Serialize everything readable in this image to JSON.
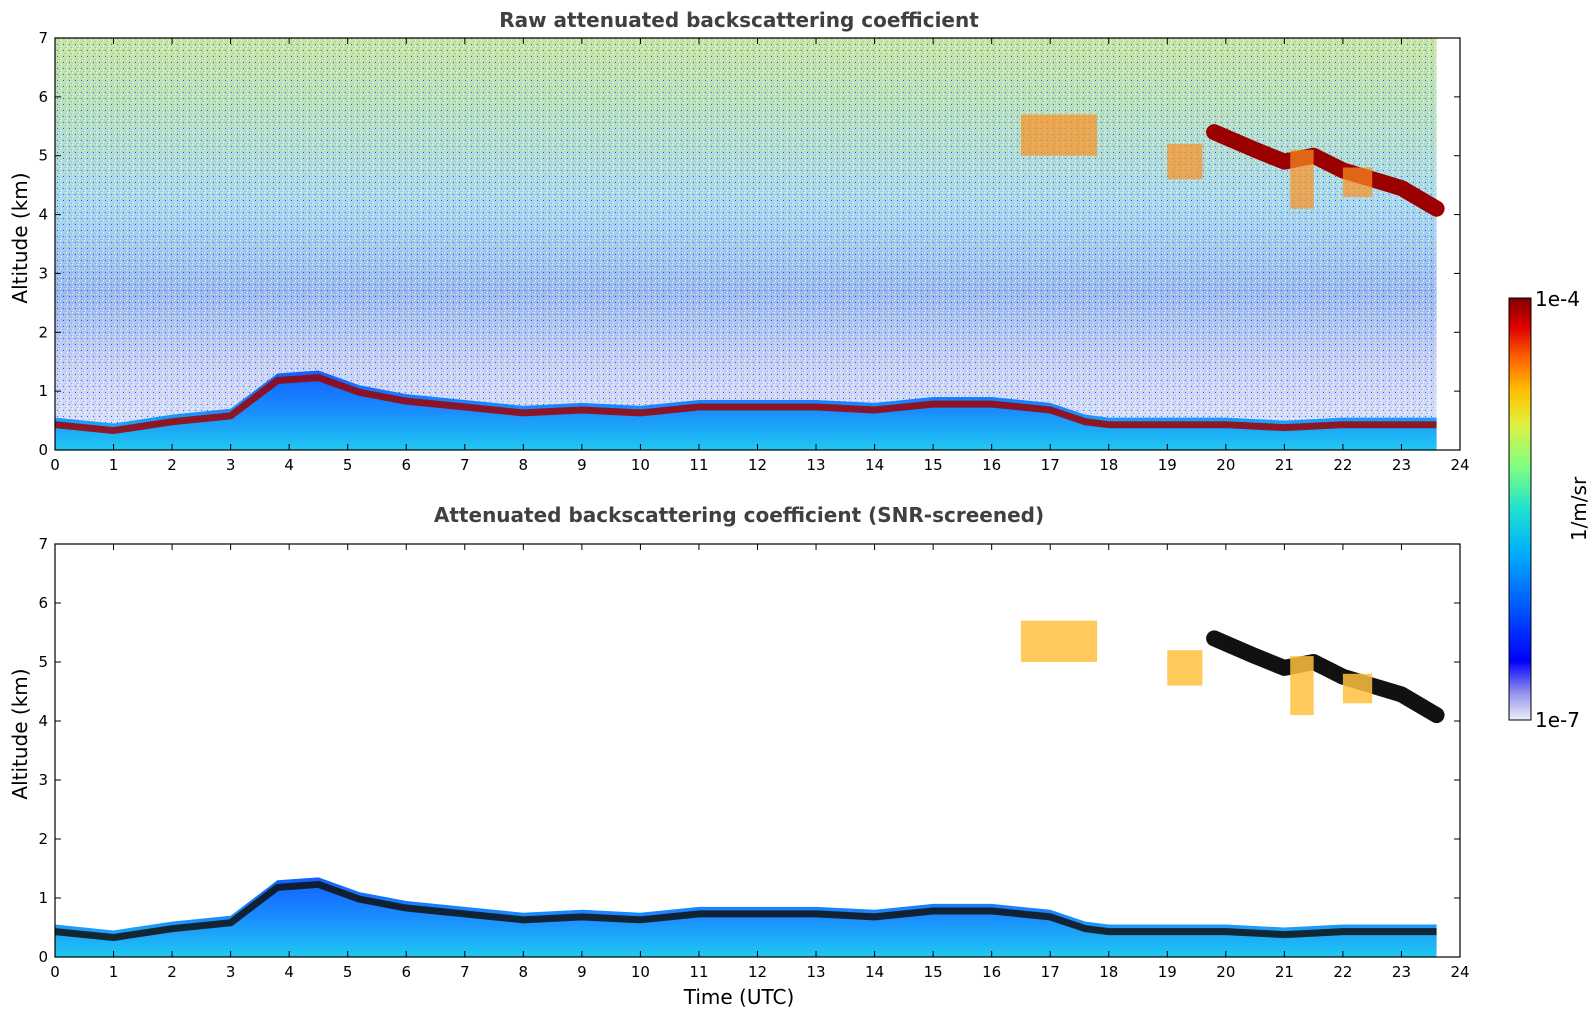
{
  "chart_data": [
    {
      "type": "heatmap",
      "title": "Raw attenuated backscattering coefficient",
      "xlabel": "",
      "ylabel": "Altitude (km)",
      "xlim": [
        0,
        24
      ],
      "ylim": [
        0,
        7
      ],
      "xticks": [
        0,
        1,
        2,
        3,
        4,
        5,
        6,
        7,
        8,
        9,
        10,
        11,
        12,
        13,
        14,
        15,
        16,
        17,
        18,
        19,
        20,
        21,
        22,
        23,
        24
      ],
      "yticks": [
        0,
        1,
        2,
        3,
        4,
        5,
        6,
        7
      ],
      "data_end_hour": 23.6,
      "features": {
        "boundary_layer_top_km": [
          [
            0,
            0.55
          ],
          [
            1,
            0.45
          ],
          [
            2,
            0.6
          ],
          [
            3,
            0.7
          ],
          [
            3.8,
            1.3
          ],
          [
            4.5,
            1.35
          ],
          [
            5.2,
            1.1
          ],
          [
            6,
            0.95
          ],
          [
            7,
            0.85
          ],
          [
            8,
            0.75
          ],
          [
            9,
            0.8
          ],
          [
            10,
            0.75
          ],
          [
            11,
            0.85
          ],
          [
            12,
            0.85
          ],
          [
            13,
            0.85
          ],
          [
            14,
            0.8
          ],
          [
            15,
            0.9
          ],
          [
            16,
            0.9
          ],
          [
            17,
            0.8
          ],
          [
            17.6,
            0.6
          ],
          [
            18,
            0.55
          ],
          [
            20,
            0.55
          ],
          [
            21,
            0.5
          ],
          [
            22,
            0.55
          ],
          [
            23.6,
            0.55
          ]
        ],
        "cloud_layer_km": [
          [
            19.8,
            5.4
          ],
          [
            20.5,
            5.1
          ],
          [
            21,
            4.9
          ],
          [
            21.5,
            5.0
          ],
          [
            22,
            4.75
          ],
          [
            22.5,
            4.6
          ],
          [
            23,
            4.45
          ],
          [
            23.6,
            4.1
          ]
        ],
        "virga_hours": [
          [
            16.5,
            17.8
          ],
          [
            19.0,
            19.6
          ],
          [
            21.1,
            21.5
          ]
        ]
      }
    },
    {
      "type": "heatmap",
      "title": "Attenuated backscattering coefficient (SNR-screened)",
      "xlabel": "Time (UTC)",
      "ylabel": "Altitude (km)",
      "xlim": [
        0,
        24
      ],
      "ylim": [
        0,
        7
      ],
      "xticks": [
        0,
        1,
        2,
        3,
        4,
        5,
        6,
        7,
        8,
        9,
        10,
        11,
        12,
        13,
        14,
        15,
        16,
        17,
        18,
        19,
        20,
        21,
        22,
        23,
        24
      ],
      "yticks": [
        0,
        1,
        2,
        3,
        4,
        5,
        6,
        7
      ],
      "data_end_hour": 23.6,
      "features": {
        "boundary_layer_top_km": [
          [
            0,
            0.55
          ],
          [
            1,
            0.45
          ],
          [
            2,
            0.6
          ],
          [
            3,
            0.7
          ],
          [
            3.8,
            1.3
          ],
          [
            4.5,
            1.35
          ],
          [
            5.2,
            1.1
          ],
          [
            6,
            0.95
          ],
          [
            7,
            0.85
          ],
          [
            8,
            0.75
          ],
          [
            9,
            0.8
          ],
          [
            10,
            0.75
          ],
          [
            11,
            0.85
          ],
          [
            12,
            0.85
          ],
          [
            13,
            0.85
          ],
          [
            14,
            0.8
          ],
          [
            15,
            0.9
          ],
          [
            16,
            0.9
          ],
          [
            17,
            0.8
          ],
          [
            17.6,
            0.6
          ],
          [
            18,
            0.55
          ],
          [
            20,
            0.55
          ],
          [
            21,
            0.5
          ],
          [
            22,
            0.55
          ],
          [
            23.6,
            0.55
          ]
        ],
        "cloud_layer_km": [
          [
            19.8,
            5.4
          ],
          [
            20.5,
            5.1
          ],
          [
            21,
            4.9
          ],
          [
            21.5,
            5.0
          ],
          [
            22,
            4.75
          ],
          [
            22.5,
            4.6
          ],
          [
            23,
            4.45
          ],
          [
            23.6,
            4.1
          ]
        ]
      }
    }
  ],
  "colorbar": {
    "label": "1/m/sr",
    "min_label": "1e-7",
    "max_label": "1e-4",
    "scale": "log",
    "colormap": [
      "#eeeefa",
      "#9999ee",
      "#0000ff",
      "#0060ff",
      "#00b0ff",
      "#20e0d0",
      "#80ff80",
      "#e0f040",
      "#ffc000",
      "#ff6000",
      "#e00000",
      "#800000"
    ]
  }
}
